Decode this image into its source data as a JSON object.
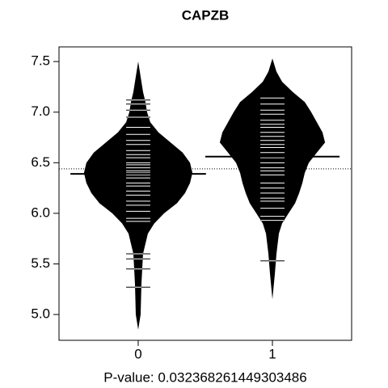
{
  "chart_data": {
    "type": "beanplot",
    "title": "CAPZB",
    "x_label": "P-value: 0.032368261449303486",
    "xlim": [
      -0.59,
      1.59
    ],
    "xticks": [
      0,
      1
    ],
    "ylim": [
      4.745,
      7.645
    ],
    "yticks": [
      {
        "value": 5,
        "label": "5.0"
      },
      {
        "value": 5.5,
        "label": "5.5"
      },
      {
        "value": 6,
        "label": "6.0"
      },
      {
        "value": 6.5,
        "label": "6.5"
      },
      {
        "value": 7,
        "label": "7.0"
      },
      {
        "value": 7.5,
        "label": "7.5"
      }
    ],
    "overall_mean": 6.44,
    "bean_color": "#000000",
    "line_color": "#ffffff",
    "groups": [
      {
        "x": 0,
        "mean": 6.39,
        "mean_halfwidth": 0.505,
        "obs_halfwidth": 0.09,
        "density_y": [
          4.85,
          5.0,
          5.3,
          5.6,
          5.8,
          5.9,
          6.0,
          6.1,
          6.2,
          6.3,
          6.4,
          6.5,
          6.6,
          6.7,
          6.8,
          6.9,
          7.0,
          7.1,
          7.2,
          7.35,
          7.5
        ],
        "density_width": [
          0,
          0.018,
          0.024,
          0.036,
          0.072,
          0.12,
          0.193,
          0.289,
          0.349,
          0.386,
          0.404,
          0.386,
          0.331,
          0.241,
          0.151,
          0.09,
          0.066,
          0.054,
          0.036,
          0.018,
          0
        ],
        "observations": [
          7.12,
          7.08,
          7.02,
          6.95,
          6.85,
          6.78,
          6.72,
          6.68,
          6.62,
          6.58,
          6.55,
          6.5,
          6.48,
          6.45,
          6.42,
          6.4,
          6.38,
          6.35,
          6.3,
          6.27,
          6.22,
          6.18,
          6.12,
          6.08,
          6.02,
          5.95,
          5.92,
          5.6,
          5.55,
          5.45,
          5.27
        ]
      },
      {
        "x": 1,
        "mean": 6.56,
        "mean_halfwidth": 0.5,
        "obs_halfwidth": 0.09,
        "density_y": [
          5.15,
          5.4,
          5.6,
          5.8,
          5.9,
          6.0,
          6.1,
          6.2,
          6.3,
          6.4,
          6.5,
          6.6,
          6.7,
          6.8,
          6.9,
          7.0,
          7.1,
          7.2,
          7.3,
          7.4,
          7.53
        ],
        "density_width": [
          0,
          0.018,
          0.03,
          0.048,
          0.072,
          0.12,
          0.169,
          0.199,
          0.223,
          0.241,
          0.271,
          0.331,
          0.392,
          0.373,
          0.331,
          0.289,
          0.241,
          0.151,
          0.072,
          0.03,
          0
        ],
        "observations": [
          7.14,
          7.08,
          7.02,
          6.98,
          6.92,
          6.88,
          6.85,
          6.8,
          6.76,
          6.72,
          6.68,
          6.65,
          6.6,
          6.55,
          6.5,
          6.45,
          6.42,
          6.38,
          6.3,
          6.25,
          6.2,
          6.15,
          6.12,
          6.05,
          5.97,
          5.93,
          5.53
        ]
      }
    ]
  }
}
